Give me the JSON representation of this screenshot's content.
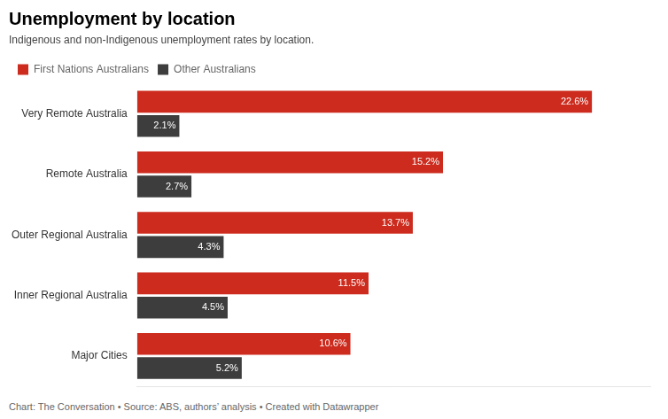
{
  "chart_data": {
    "type": "bar",
    "orientation": "horizontal",
    "title": "Unemployment by location",
    "subtitle": "Indigenous and non-Indigenous unemployment rates by location.",
    "footer": "Chart: The Conversation • Source: ABS, authors’ analysis • Created with Datawrapper",
    "categories": [
      "Very Remote Australia",
      "Remote Australia",
      "Outer Regional Australia",
      "Inner Regional Australia",
      "Major Cities"
    ],
    "series": [
      {
        "name": "First Nations Australians",
        "color": "#cc2b1d",
        "values": [
          22.6,
          15.2,
          13.7,
          11.5,
          10.6
        ],
        "value_labels": [
          "22.6%",
          "15.2%",
          "13.7%",
          "11.5%",
          "10.6%"
        ]
      },
      {
        "name": "Other Australians",
        "color": "#3d3d3d",
        "values": [
          2.1,
          2.7,
          4.3,
          4.5,
          5.2
        ],
        "value_labels": [
          "2.1%",
          "2.7%",
          "4.3%",
          "4.5%",
          "5.2%"
        ]
      }
    ],
    "xlim": [
      0,
      25.5
    ],
    "grid": false,
    "legend": "upper left",
    "data_labels": true,
    "tick_labels": "y"
  }
}
